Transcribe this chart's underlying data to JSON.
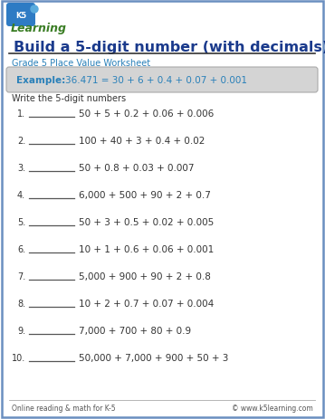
{
  "title": "Build a 5-digit number (with decimals)",
  "subtitle": "Grade 5 Place Value Worksheet",
  "example_label": "Example:",
  "example_text": "36.471 = 30 + 6 + 0.4 + 0.07 + 0.001",
  "instruction": "Write the 5-digit numbers",
  "problems": [
    "50 + 5 + 0.2 + 0.06 + 0.006",
    "100 + 40 + 3 + 0.4 + 0.02",
    "50 + 0.8 + 0.03 + 0.007",
    "6,000 + 500 + 90 + 2 + 0.7",
    "50 + 3 + 0.5 + 0.02 + 0.005",
    "10 + 1 + 0.6 + 0.06 + 0.001",
    "5,000 + 900 + 90 + 2 + 0.8",
    "10 + 2 + 0.7 + 0.07 + 0.004",
    "7,000 + 700 + 80 + 0.9",
    "50,000 + 7,000 + 900 + 50 + 3"
  ],
  "footer_left": "Online reading & math for K-5",
  "footer_right": "© www.k5learning.com",
  "title_color": "#1a3a8c",
  "subtitle_color": "#2980b9",
  "example_color": "#2980b9",
  "example_box_bg": "#d4d4d4",
  "example_box_edge": "#aaaaaa",
  "border_color": "#6a8fc0",
  "text_color": "#333333",
  "footer_color": "#555555",
  "background_color": "#ffffff",
  "line_color": "#555555",
  "logo_green": "#3a7d24",
  "logo_box_color": "#2e7bc4"
}
